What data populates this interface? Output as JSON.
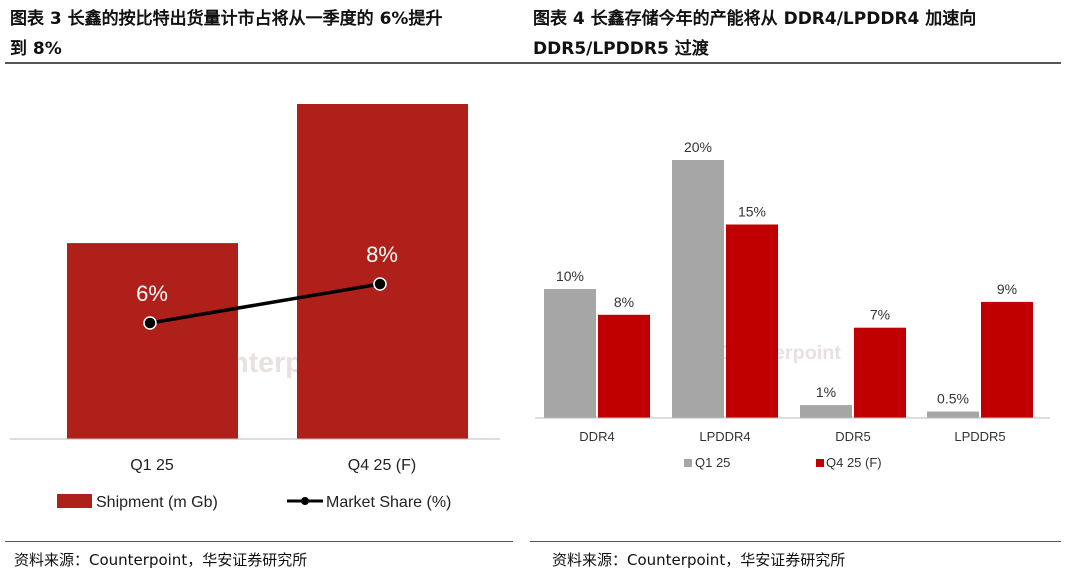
{
  "left": {
    "title_line1": "图表 3 长鑫的按比特出货量计市占将从一季度的 6%提升",
    "title_line2": "到 8%",
    "source": "资料来源：Counterpoint，华安证券研究所"
  },
  "right": {
    "title_line1": "图表 4 长鑫存储今年的产能将从 DDR4/LPDDR4 加速向",
    "title_line2": "DDR5/LPDDR5 过渡",
    "source": "资料来源：Counterpoint，华安证券研究所"
  },
  "watermark": "Counterpoint",
  "chart_data": [
    {
      "type": "bar+line",
      "categories": [
        "Q1 25",
        "Q4 25 (F)"
      ],
      "series": [
        {
          "name": "Shipment (m Gb)",
          "type": "bar",
          "values": [
            1.0,
            1.71
          ],
          "color": "#b0201a"
        },
        {
          "name": "Market Share (%)",
          "type": "line",
          "values": [
            6,
            8
          ],
          "labels": [
            "6%",
            "8%"
          ],
          "color": "#000000"
        }
      ],
      "legend": "bottom",
      "grid": false
    },
    {
      "type": "bar",
      "categories": [
        "DDR4",
        "LPDDR4",
        "DDR5",
        "LPDDR5"
      ],
      "series": [
        {
          "name": "Q1 25",
          "values": [
            10,
            20,
            1,
            0.5
          ],
          "labels": [
            "10%",
            "20%",
            "1%",
            "0.5%"
          ],
          "color": "#a6a6a6"
        },
        {
          "name": "Q4 25 (F)",
          "values": [
            8,
            15,
            7,
            9
          ],
          "labels": [
            "8%",
            "15%",
            "7%",
            "9%"
          ],
          "color": "#c00000"
        }
      ],
      "legend": "bottom",
      "grid": false
    }
  ]
}
